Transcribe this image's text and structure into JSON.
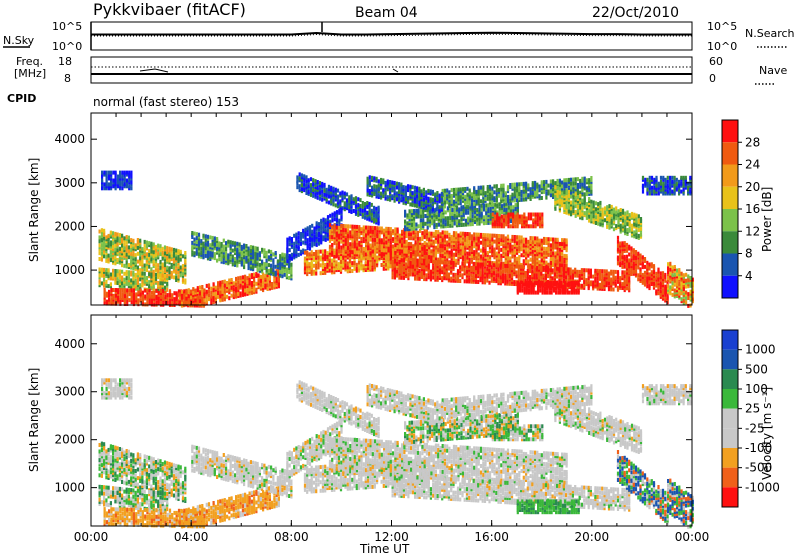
{
  "header": {
    "station": "Pykkvibaer (fitACF)",
    "beam": "Beam 04",
    "date": "22/Oct/2010"
  },
  "side_labels": {
    "nsky": "N.Sky",
    "freq_line1": "Freq.",
    "freq_line2": "[MHz]",
    "cpid": "CPID",
    "nsearch": "N.Search",
    "nave": "Nave"
  },
  "mode_text": "normal (fast stereo) 153",
  "colors": {
    "power": [
      "#1010ff",
      "#1a55b0",
      "#3a8a3a",
      "#7cc24a",
      "#e8c21a",
      "#f29a1a",
      "#f05a10",
      "#ff1010"
    ],
    "velocity": [
      "#ff1010",
      "#f0601a",
      "#f2a020",
      "#c8c8c8",
      "#c8c8c8",
      "#3ab83a",
      "#2a8a50",
      "#1a55b0",
      "#1a40d0"
    ],
    "noise": "#ff2020"
  },
  "chart_data": [
    {
      "type": "line",
      "panel": "noise",
      "ylabel": "N.Sky",
      "yticks_left": [
        "10^5",
        "10^0"
      ],
      "yticks_right": [
        "10^5",
        "10^0"
      ],
      "right_label": "N.Search",
      "legend_style": "dotted",
      "x": [
        0,
        1,
        2,
        3,
        4,
        5,
        6,
        7,
        8,
        9,
        10,
        11,
        12,
        13,
        14,
        15,
        16,
        17,
        18,
        19,
        20,
        21,
        22,
        23,
        24
      ],
      "series": [
        {
          "values": [
            3.2,
            3.2,
            3.2,
            3.2,
            3.2,
            3.2,
            3.2,
            3.2,
            3.2,
            3.6,
            3.2,
            3.2,
            3.3,
            3.4,
            3.5,
            3.6,
            3.7,
            3.6,
            3.5,
            3.4,
            3.3,
            3.3,
            3.2,
            3.2,
            3.2
          ]
        }
      ]
    },
    {
      "type": "line",
      "panel": "frequency",
      "ylabel": "Freq. [MHz]",
      "yticks_left": [
        "18",
        "8"
      ],
      "yticks_right": [
        "60",
        "0"
      ],
      "right_label": "Nave",
      "legend_style": "dotted"
    },
    {
      "type": "heatmap",
      "panel": "power",
      "xlabel": "",
      "ylabel": "Slant Range [km]",
      "yticks": [
        "4000",
        "3000",
        "2000",
        "1000"
      ],
      "ylim": [
        200,
        4600
      ],
      "colorbar_label": "Power [dB]",
      "colorbar_ticks": [
        "28",
        "24",
        "20",
        "16",
        "12",
        "8",
        "4"
      ],
      "colorbar_range": [
        0,
        32
      ]
    },
    {
      "type": "heatmap",
      "panel": "velocity",
      "xlabel": "Time UT",
      "ylabel": "Slant Range [km]",
      "yticks": [
        "4000",
        "3000",
        "2000",
        "1000"
      ],
      "ylim": [
        200,
        4600
      ],
      "xticks": [
        "00:00",
        "04:00",
        "08:00",
        "12:00",
        "16:00",
        "20:00",
        "00:00"
      ],
      "xlim": [
        0,
        24
      ],
      "colorbar_label": "Velocity [m s⁻¹]",
      "colorbar_ticks": [
        "1000",
        "500",
        "100",
        "25",
        "-25",
        "-100",
        "-500",
        "-1000"
      ]
    }
  ]
}
